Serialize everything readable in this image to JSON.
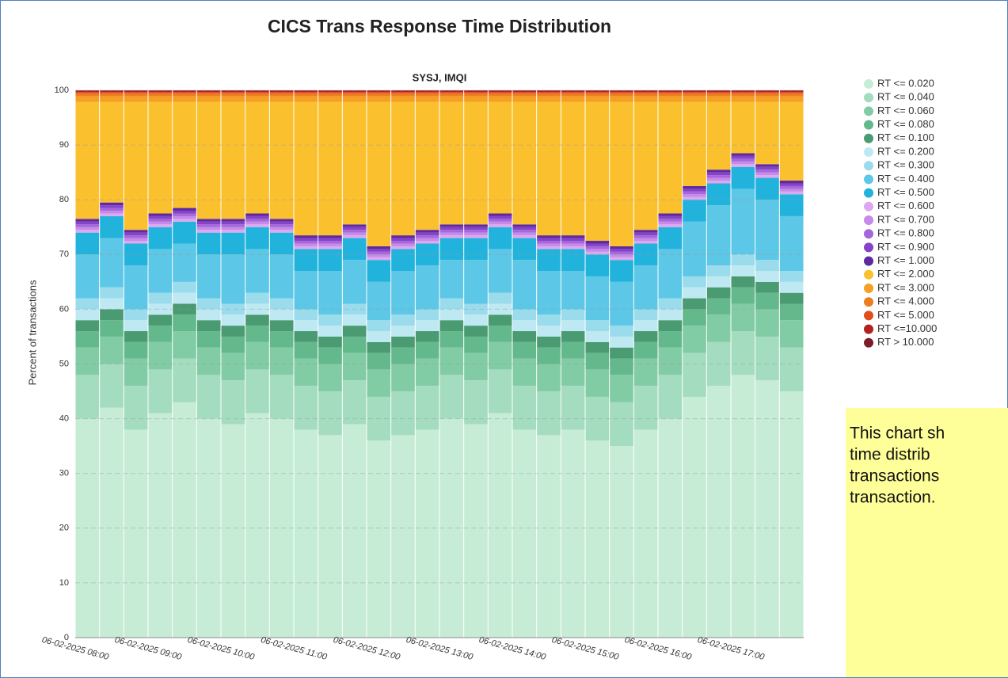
{
  "chart_data": {
    "type": "stacked_bar",
    "title": "CICS Trans Response Time Distribution",
    "subtitle": "SYSJ, IMQI",
    "y_label": "Percent of transactions",
    "categories": [
      "06-02-2025 08:00",
      null,
      null,
      "06-02-2025 09:00",
      null,
      null,
      "06-02-2025 10:00",
      null,
      null,
      "06-02-2025 11:00",
      null,
      null,
      "06-02-2025 12:00",
      null,
      null,
      "06-02-2025 13:00",
      null,
      null,
      "06-02-2025 14:00",
      null,
      null,
      "06-02-2025 15:00",
      null,
      null,
      "06-02-2025 16:00",
      null,
      null,
      "06-02-2025 17:00",
      null,
      null
    ],
    "ylim": [
      0,
      100
    ],
    "yticks": [
      0,
      10,
      20,
      30,
      40,
      50,
      60,
      70,
      80,
      90,
      100
    ],
    "grid": true,
    "series": [
      {
        "name": "RT <= 0.020",
        "color": "#c6ecd6",
        "values": [
          40,
          42,
          38,
          41,
          43,
          40,
          39,
          41,
          40,
          38,
          37,
          39,
          36,
          37,
          38,
          40,
          39,
          41,
          38,
          37,
          38,
          36,
          35,
          38,
          40,
          44,
          46,
          48,
          47,
          45
        ]
      },
      {
        "name": "RT <= 0.040",
        "color": "#a3dcbe",
        "values": [
          8,
          8,
          8,
          8,
          8,
          8,
          8,
          8,
          8,
          8,
          8,
          8,
          8,
          8,
          8,
          8,
          8,
          8,
          8,
          8,
          8,
          8,
          8,
          8,
          8,
          8,
          8,
          8,
          8,
          8
        ]
      },
      {
        "name": "RT <= 0.060",
        "color": "#82cca5",
        "values": [
          5,
          5,
          5,
          5,
          5,
          5,
          5,
          5,
          5,
          5,
          5,
          5,
          5,
          5,
          5,
          5,
          5,
          5,
          5,
          5,
          5,
          5,
          5,
          5,
          5,
          5,
          5,
          5,
          5,
          5
        ]
      },
      {
        "name": "RT <= 0.080",
        "color": "#63b98c",
        "values": [
          3,
          3,
          3,
          3,
          3,
          3,
          3,
          3,
          3,
          3,
          3,
          3,
          3,
          3,
          3,
          3,
          3,
          3,
          3,
          3,
          3,
          3,
          3,
          3,
          3,
          3,
          3,
          3,
          3,
          3
        ]
      },
      {
        "name": "RT <= 0.100",
        "color": "#4a9a72",
        "values": [
          2,
          2,
          2,
          2,
          2,
          2,
          2,
          2,
          2,
          2,
          2,
          2,
          2,
          2,
          2,
          2,
          2,
          2,
          2,
          2,
          2,
          2,
          2,
          2,
          2,
          2,
          2,
          2,
          2,
          2
        ]
      },
      {
        "name": "RT <= 0.200",
        "color": "#bfe9f2",
        "values": [
          2,
          2,
          2,
          2,
          2,
          2,
          2,
          2,
          2,
          2,
          2,
          2,
          2,
          2,
          2,
          2,
          2,
          2,
          2,
          2,
          2,
          2,
          2,
          2,
          2,
          2,
          2,
          2,
          2,
          2
        ]
      },
      {
        "name": "RT <= 0.300",
        "color": "#9adcec",
        "values": [
          2,
          2,
          2,
          2,
          2,
          2,
          2,
          2,
          2,
          2,
          2,
          2,
          2,
          2,
          2,
          2,
          2,
          2,
          2,
          2,
          2,
          2,
          2,
          2,
          2,
          2,
          2,
          2,
          2,
          2
        ]
      },
      {
        "name": "RT <= 0.400",
        "color": "#5cc7e6",
        "values": [
          8,
          9,
          8,
          8,
          7,
          8,
          9,
          8,
          8,
          7,
          8,
          8,
          7,
          8,
          8,
          7,
          8,
          8,
          9,
          8,
          7,
          8,
          8,
          8,
          9,
          10,
          11,
          12,
          11,
          10
        ]
      },
      {
        "name": "RT <= 0.500",
        "color": "#22b3dc",
        "values": [
          4,
          4,
          4,
          4,
          4,
          4,
          4,
          4,
          4,
          4,
          4,
          4,
          4,
          4,
          4,
          4,
          4,
          4,
          4,
          4,
          4,
          4,
          4,
          4,
          4,
          4,
          4,
          4,
          4,
          4
        ]
      },
      {
        "name": "RT <= 0.600",
        "color": "#dda8f0",
        "values": [
          0.5,
          0.5,
          0.5,
          0.5,
          0.5,
          0.5,
          0.5,
          0.5,
          0.5,
          0.5,
          0.5,
          0.5,
          0.5,
          0.5,
          0.5,
          0.5,
          0.5,
          0.5,
          0.5,
          0.5,
          0.5,
          0.5,
          0.5,
          0.5,
          0.5,
          0.5,
          0.5,
          0.5,
          0.5,
          0.5
        ]
      },
      {
        "name": "RT <= 0.700",
        "color": "#c68ae8",
        "values": [
          0.5,
          0.5,
          0.5,
          0.5,
          0.5,
          0.5,
          0.5,
          0.5,
          0.5,
          0.5,
          0.5,
          0.5,
          0.5,
          0.5,
          0.5,
          0.5,
          0.5,
          0.5,
          0.5,
          0.5,
          0.5,
          0.5,
          0.5,
          0.5,
          0.5,
          0.5,
          0.5,
          0.5,
          0.5,
          0.5
        ]
      },
      {
        "name": "RT <= 0.800",
        "color": "#a567dc",
        "values": [
          0.5,
          0.5,
          0.5,
          0.5,
          0.5,
          0.5,
          0.5,
          0.5,
          0.5,
          0.5,
          0.5,
          0.5,
          0.5,
          0.5,
          0.5,
          0.5,
          0.5,
          0.5,
          0.5,
          0.5,
          0.5,
          0.5,
          0.5,
          0.5,
          0.5,
          0.5,
          0.5,
          0.5,
          0.5,
          0.5
        ]
      },
      {
        "name": "RT <= 0.900",
        "color": "#8443c8",
        "values": [
          0.5,
          0.5,
          0.5,
          0.5,
          0.5,
          0.5,
          0.5,
          0.5,
          0.5,
          0.5,
          0.5,
          0.5,
          0.5,
          0.5,
          0.5,
          0.5,
          0.5,
          0.5,
          0.5,
          0.5,
          0.5,
          0.5,
          0.5,
          0.5,
          0.5,
          0.5,
          0.5,
          0.5,
          0.5,
          0.5
        ]
      },
      {
        "name": "RT <= 1.000",
        "color": "#5f2aa0",
        "values": [
          0.5,
          0.5,
          0.5,
          0.5,
          0.5,
          0.5,
          0.5,
          0.5,
          0.5,
          0.5,
          0.5,
          0.5,
          0.5,
          0.5,
          0.5,
          0.5,
          0.5,
          0.5,
          0.5,
          0.5,
          0.5,
          0.5,
          0.5,
          0.5,
          0.5,
          0.5,
          0.5,
          0.5,
          0.5,
          0.5
        ]
      },
      {
        "name": "RT <= 2.000",
        "color": "#fbc02d",
        "values": [
          21.4,
          18.4,
          23.4,
          20.4,
          19.4,
          21.4,
          21.4,
          20.4,
          21.4,
          24.4,
          24.4,
          22.4,
          26.4,
          24.4,
          23.4,
          22.4,
          22.4,
          20.4,
          22.4,
          24.4,
          24.4,
          25.4,
          26.4,
          23.4,
          20.4,
          15.4,
          12.4,
          9.4,
          11.4,
          14.4
        ]
      },
      {
        "name": "RT <= 3.000",
        "color": "#f5a025",
        "values": [
          1,
          1,
          1,
          1,
          1,
          1,
          1,
          1,
          1,
          1,
          1,
          1,
          1,
          1,
          1,
          1,
          1,
          1,
          1,
          1,
          1,
          1,
          1,
          1,
          1,
          1,
          1,
          1,
          1,
          1
        ]
      },
      {
        "name": "RT <= 4.000",
        "color": "#ee7d22",
        "values": [
          0.5,
          0.5,
          0.5,
          0.5,
          0.5,
          0.5,
          0.5,
          0.5,
          0.5,
          0.5,
          0.5,
          0.5,
          0.5,
          0.5,
          0.5,
          0.5,
          0.5,
          0.5,
          0.5,
          0.5,
          0.5,
          0.5,
          0.5,
          0.5,
          0.5,
          0.5,
          0.5,
          0.5,
          0.5,
          0.5
        ]
      },
      {
        "name": "RT <= 5.000",
        "color": "#e0501e",
        "values": [
          0.3,
          0.3,
          0.3,
          0.3,
          0.3,
          0.3,
          0.3,
          0.3,
          0.3,
          0.3,
          0.3,
          0.3,
          0.3,
          0.3,
          0.3,
          0.3,
          0.3,
          0.3,
          0.3,
          0.3,
          0.3,
          0.3,
          0.3,
          0.3,
          0.3,
          0.3,
          0.3,
          0.3,
          0.3,
          0.3
        ]
      },
      {
        "name": "RT <=10.000",
        "color": "#b22222",
        "values": [
          0.2,
          0.2,
          0.2,
          0.2,
          0.2,
          0.2,
          0.2,
          0.2,
          0.2,
          0.2,
          0.2,
          0.2,
          0.2,
          0.2,
          0.2,
          0.2,
          0.2,
          0.2,
          0.2,
          0.2,
          0.2,
          0.2,
          0.2,
          0.2,
          0.2,
          0.2,
          0.2,
          0.2,
          0.2,
          0.2
        ]
      },
      {
        "name": "RT > 10.000",
        "color": "#7a1f2a",
        "values": [
          0.1,
          0.1,
          0.1,
          0.1,
          0.1,
          0.1,
          0.1,
          0.1,
          0.1,
          0.1,
          0.1,
          0.1,
          0.1,
          0.1,
          0.1,
          0.1,
          0.1,
          0.1,
          0.1,
          0.1,
          0.1,
          0.1,
          0.1,
          0.1,
          0.1,
          0.1,
          0.1,
          0.1,
          0.1,
          0.1
        ]
      }
    ]
  },
  "note": {
    "lines": [
      "This chart sh",
      "time distrib",
      "transactions",
      "transaction."
    ]
  }
}
